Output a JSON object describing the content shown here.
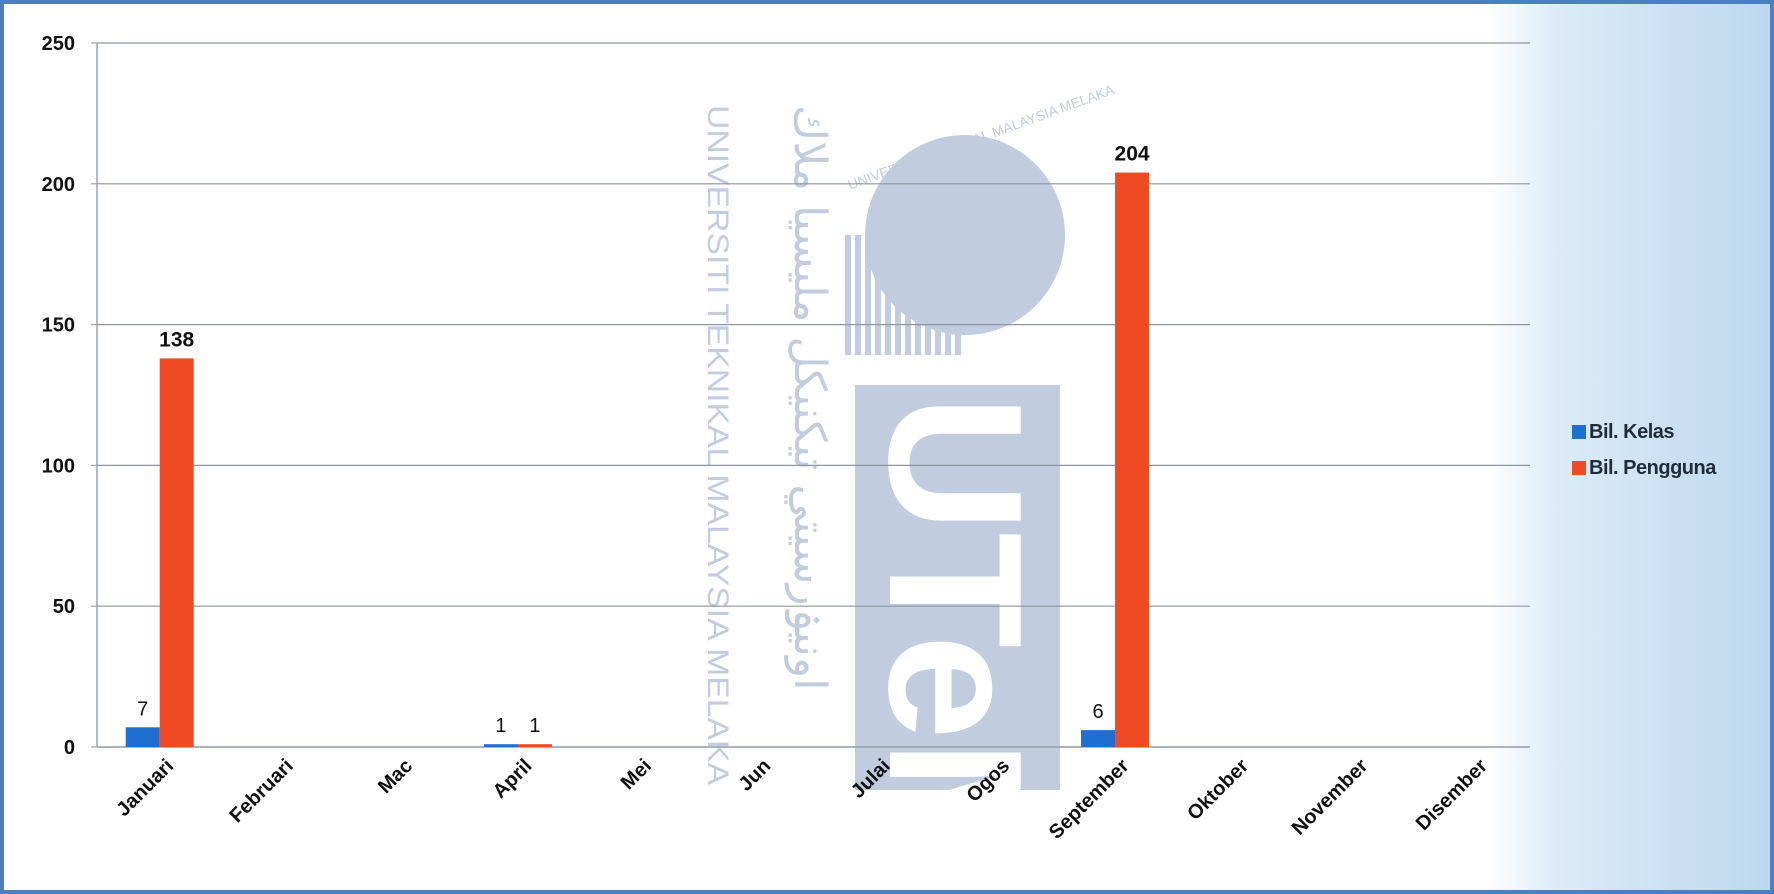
{
  "chart_data": {
    "type": "bar",
    "categories": [
      "Januari",
      "Februari",
      "Mac",
      "April",
      "Mei",
      "Jun",
      "Julai",
      "Ogos",
      "September",
      "Oktober",
      "November",
      "Disember"
    ],
    "series": [
      {
        "name": "Bil. Kelas",
        "color": "#1f6fd0",
        "values": [
          7,
          0,
          0,
          1,
          0,
          0,
          0,
          0,
          6,
          0,
          0,
          0
        ]
      },
      {
        "name": "Bil. Pengguna",
        "color": "#f04a25",
        "values": [
          138,
          0,
          0,
          1,
          0,
          0,
          0,
          0,
          204,
          0,
          0,
          0
        ]
      }
    ],
    "data_labels": [
      {
        "series": 0,
        "category": "Januari",
        "text": "7"
      },
      {
        "series": 1,
        "category": "Januari",
        "text": "138"
      },
      {
        "series": 0,
        "category": "April",
        "text": "1"
      },
      {
        "series": 1,
        "category": "April",
        "text": "1"
      },
      {
        "series": 0,
        "category": "September",
        "text": "6"
      },
      {
        "series": 1,
        "category": "September",
        "text": "204"
      }
    ],
    "yticks": [
      0,
      50,
      100,
      150,
      200,
      250
    ],
    "ylim": [
      0,
      250
    ],
    "grid": true,
    "legend_position": "right",
    "title": "",
    "xlabel": "",
    "ylabel": ""
  },
  "watermark": {
    "text_vertical": "UNIVERSITI TEKNIKAL MALAYSIA MELAKA",
    "seal_text": "UNIVERSITI TEKNIKAL MALAYSIA MELAKA",
    "arabic_text": "اونيۏرسيتي تيكنيكل مليسيا ملاك",
    "logo_text": "UTeM",
    "color": "#8fa3c4"
  }
}
